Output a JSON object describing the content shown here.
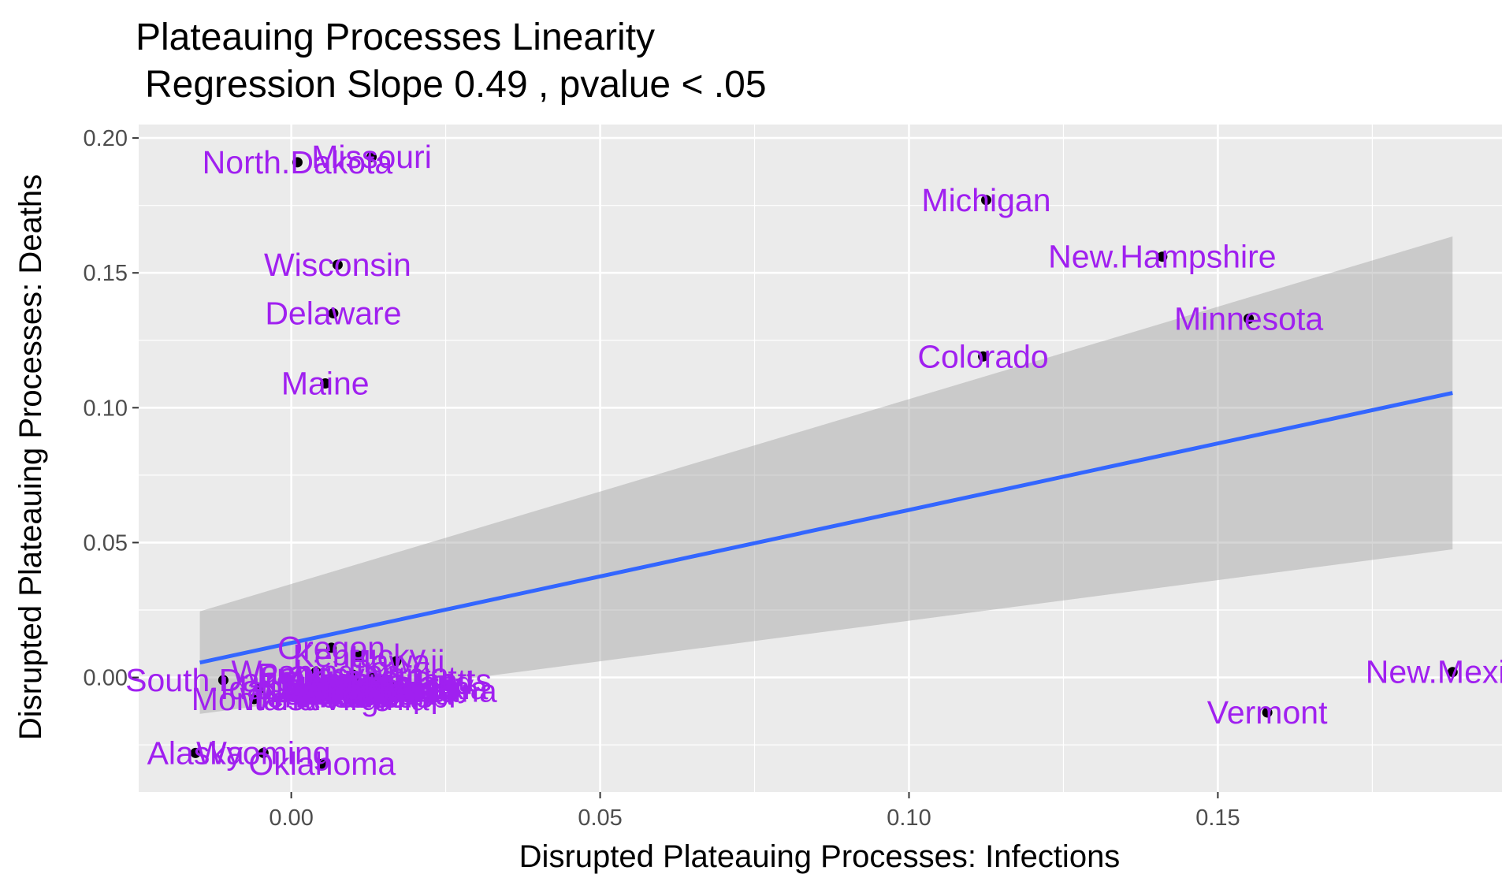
{
  "chart_data": {
    "type": "scatter",
    "title": "Plateauing Processes Linearity",
    "subtitle": "Regression Slope 0.49 , pvalue  < .05",
    "xlabel": "Disrupted Plateauing Processes: Infections",
    "ylabel": "Disrupted Plateauing Processes: Deaths",
    "xlim": [
      -0.0247,
      0.196
    ],
    "ylim": [
      -0.0425,
      0.205
    ],
    "x_ticks": [
      0.0,
      0.05,
      0.1,
      0.15
    ],
    "x_tick_labels": [
      "0.00",
      "0.05",
      "0.10",
      "0.15"
    ],
    "y_ticks": [
      0.0,
      0.05,
      0.1,
      0.15,
      0.2
    ],
    "y_tick_labels": [
      "0.00",
      "0.05",
      "0.10",
      "0.15",
      "0.20"
    ],
    "grid": true,
    "colors": {
      "panel": "#ebebeb",
      "grid": "#ffffff",
      "label": "#a020f0",
      "point": "#000000",
      "line": "#3366ff",
      "band": "#999999"
    },
    "points": [
      {
        "label": "North.Dakota",
        "x": 0.001,
        "y": 0.191
      },
      {
        "label": "Missouri",
        "x": 0.013,
        "y": 0.193
      },
      {
        "label": "Michigan",
        "x": 0.1125,
        "y": 0.177
      },
      {
        "label": "Wisconsin",
        "x": 0.0075,
        "y": 0.153
      },
      {
        "label": "New.Hampshire",
        "x": 0.141,
        "y": 0.156
      },
      {
        "label": "Delaware",
        "x": 0.0068,
        "y": 0.135
      },
      {
        "label": "Minnesota",
        "x": 0.155,
        "y": 0.133
      },
      {
        "label": "Colorado",
        "x": 0.112,
        "y": 0.119
      },
      {
        "label": "Maine",
        "x": 0.0055,
        "y": 0.109
      },
      {
        "label": "New.Mexico",
        "x": 0.188,
        "y": 0.002
      },
      {
        "label": "Vermont",
        "x": 0.158,
        "y": -0.013
      },
      {
        "label": "Oregon",
        "x": 0.0065,
        "y": 0.011
      },
      {
        "label": "Kentucky",
        "x": 0.011,
        "y": 0.008
      },
      {
        "label": "Hawaii",
        "x": 0.017,
        "y": 0.006
      },
      {
        "label": "Washington",
        "x": 0.004,
        "y": 0.002
      },
      {
        "label": "Pennsylvania",
        "x": 0.01,
        "y": 0.001
      },
      {
        "label": "Connecticut",
        "x": 0.013,
        "y": 0.0
      },
      {
        "label": "Massachusetts",
        "x": 0.015,
        "y": -0.001
      },
      {
        "label": "Rhode.Island",
        "x": 0.014,
        "y": -0.002
      },
      {
        "label": "Illinois",
        "x": 0.009,
        "y": -0.001
      },
      {
        "label": "Indiana",
        "x": 0.011,
        "y": -0.002
      },
      {
        "label": "Ohio",
        "x": 0.012,
        "y": -0.003
      },
      {
        "label": "Iowa",
        "x": 0.008,
        "y": -0.003
      },
      {
        "label": "Nebraska",
        "x": 0.01,
        "y": -0.004
      },
      {
        "label": "Kansas",
        "x": 0.009,
        "y": -0.005
      },
      {
        "label": "Virginia",
        "x": 0.012,
        "y": -0.004
      },
      {
        "label": "Maryland",
        "x": 0.014,
        "y": -0.004
      },
      {
        "label": "New.Jersey",
        "x": 0.016,
        "y": -0.003
      },
      {
        "label": "New.York",
        "x": 0.017,
        "y": -0.004
      },
      {
        "label": "North.Carolina",
        "x": 0.015,
        "y": -0.004
      },
      {
        "label": "South.Carolina",
        "x": 0.016,
        "y": -0.005
      },
      {
        "label": "South.Dakota",
        "x": -0.011,
        "y": -0.001
      },
      {
        "label": "Idaho",
        "x": -0.005,
        "y": -0.004
      },
      {
        "label": "Utah",
        "x": 0.002,
        "y": -0.005
      },
      {
        "label": "Nevada",
        "x": 0.004,
        "y": -0.006
      },
      {
        "label": "Montana",
        "x": -0.006,
        "y": -0.008
      },
      {
        "label": "Tennessee",
        "x": 0.006,
        "y": -0.007
      },
      {
        "label": "West.Virginia",
        "x": 0.007,
        "y": -0.008
      },
      {
        "label": "Alabama",
        "x": 0.008,
        "y": -0.006
      },
      {
        "label": "Georgia",
        "x": 0.011,
        "y": -0.006
      },
      {
        "label": "Florida",
        "x": 0.013,
        "y": -0.005
      },
      {
        "label": "Louisiana",
        "x": 0.015,
        "y": -0.006
      },
      {
        "label": "Mississippi",
        "x": 0.014,
        "y": -0.007
      },
      {
        "label": "Arkansas",
        "x": 0.012,
        "y": -0.007
      },
      {
        "label": "Texas",
        "x": 0.01,
        "y": -0.006
      },
      {
        "label": "California",
        "x": 0.016,
        "y": -0.005
      },
      {
        "label": "Arizona",
        "x": 0.011,
        "y": -0.005
      },
      {
        "label": "Alaska",
        "x": -0.0155,
        "y": -0.028
      },
      {
        "label": "Wyoming",
        "x": -0.0045,
        "y": -0.028
      },
      {
        "label": "Oklahoma",
        "x": 0.005,
        "y": -0.032
      }
    ],
    "regression": {
      "label": "linear fit",
      "x": [
        -0.0148,
        0.188
      ],
      "y": [
        0.0055,
        0.1055
      ],
      "ci_lower": [
        -0.0135,
        0.0475
      ],
      "ci_upper": [
        0.0245,
        0.1635
      ]
    }
  }
}
